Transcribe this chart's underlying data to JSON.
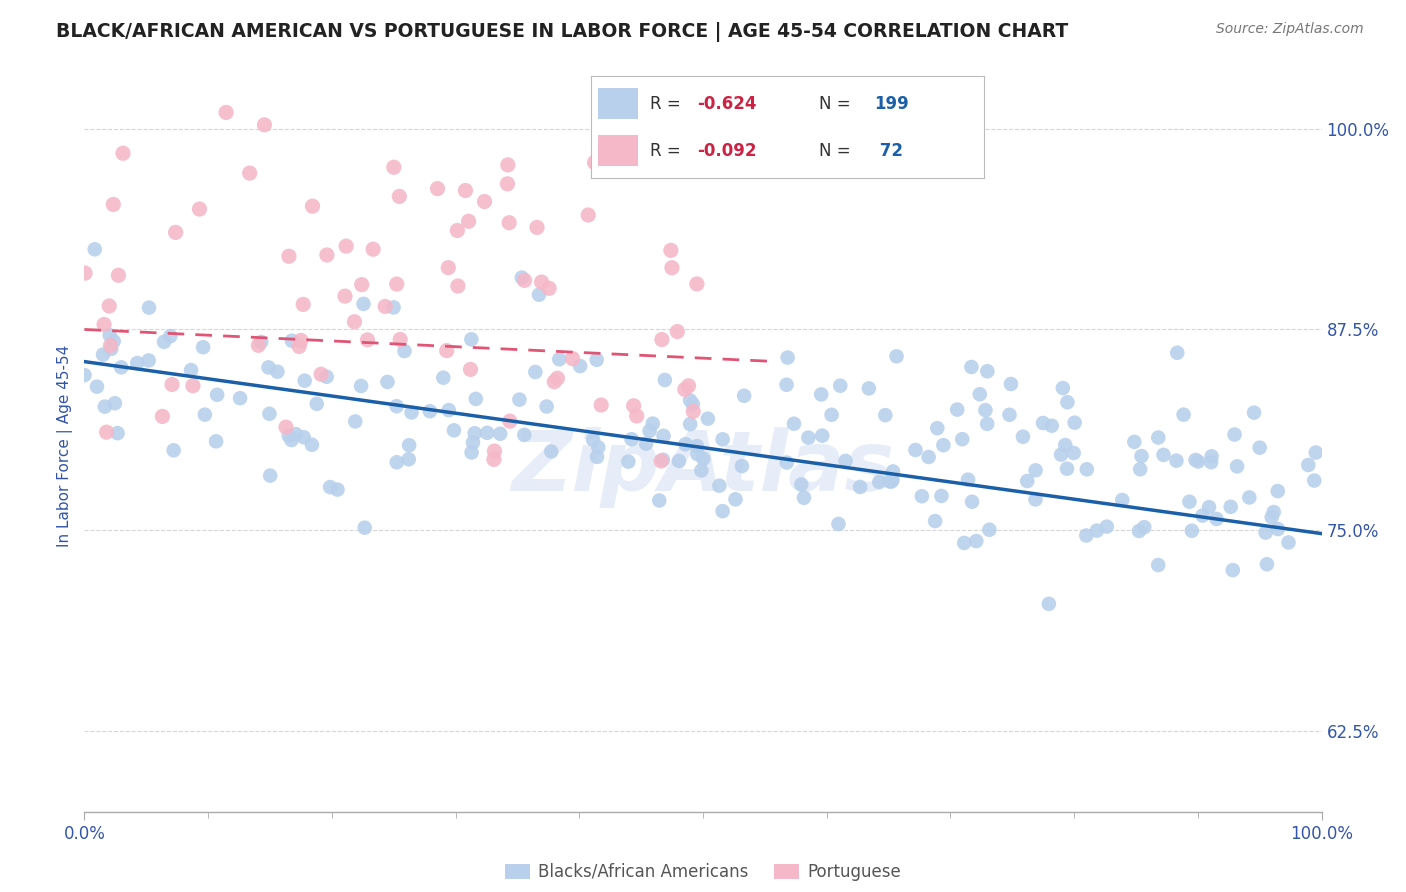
{
  "title": "BLACK/AFRICAN AMERICAN VS PORTUGUESE IN LABOR FORCE | AGE 45-54 CORRELATION CHART",
  "source": "Source: ZipAtlas.com",
  "ylabel": "In Labor Force | Age 45-54",
  "xlim": [
    0.0,
    1.0
  ],
  "ylim": [
    0.575,
    1.03
  ],
  "yticks": [
    0.625,
    0.75,
    0.875,
    1.0
  ],
  "ytick_labels": [
    "62.5%",
    "75.0%",
    "87.5%",
    "100.0%"
  ],
  "xticks": [
    0.0,
    1.0
  ],
  "xtick_labels": [
    "0.0%",
    "100.0%"
  ],
  "blue_color": "#b8d0eb",
  "pink_color": "#f4b8c8",
  "blue_line_color": "#1a5fa8",
  "pink_line_color": "#e05575",
  "watermark": "ZipAtlas",
  "blue_R": -0.624,
  "blue_N": 199,
  "pink_R": -0.092,
  "pink_N": 72,
  "background_color": "#ffffff",
  "grid_color": "#cccccc",
  "title_color": "#222222",
  "axis_label_color": "#3355aa",
  "tick_label_color": "#3355aa",
  "legend_R_color": "#cc2244",
  "legend_N_color": "#1a5fa8",
  "blue_line_x_start": 0.0,
  "blue_line_x_end": 1.0,
  "blue_line_y_start": 0.855,
  "blue_line_y_end": 0.748,
  "pink_line_x_start": 0.0,
  "pink_line_x_end": 0.56,
  "pink_line_y_start": 0.875,
  "pink_line_y_end": 0.855
}
